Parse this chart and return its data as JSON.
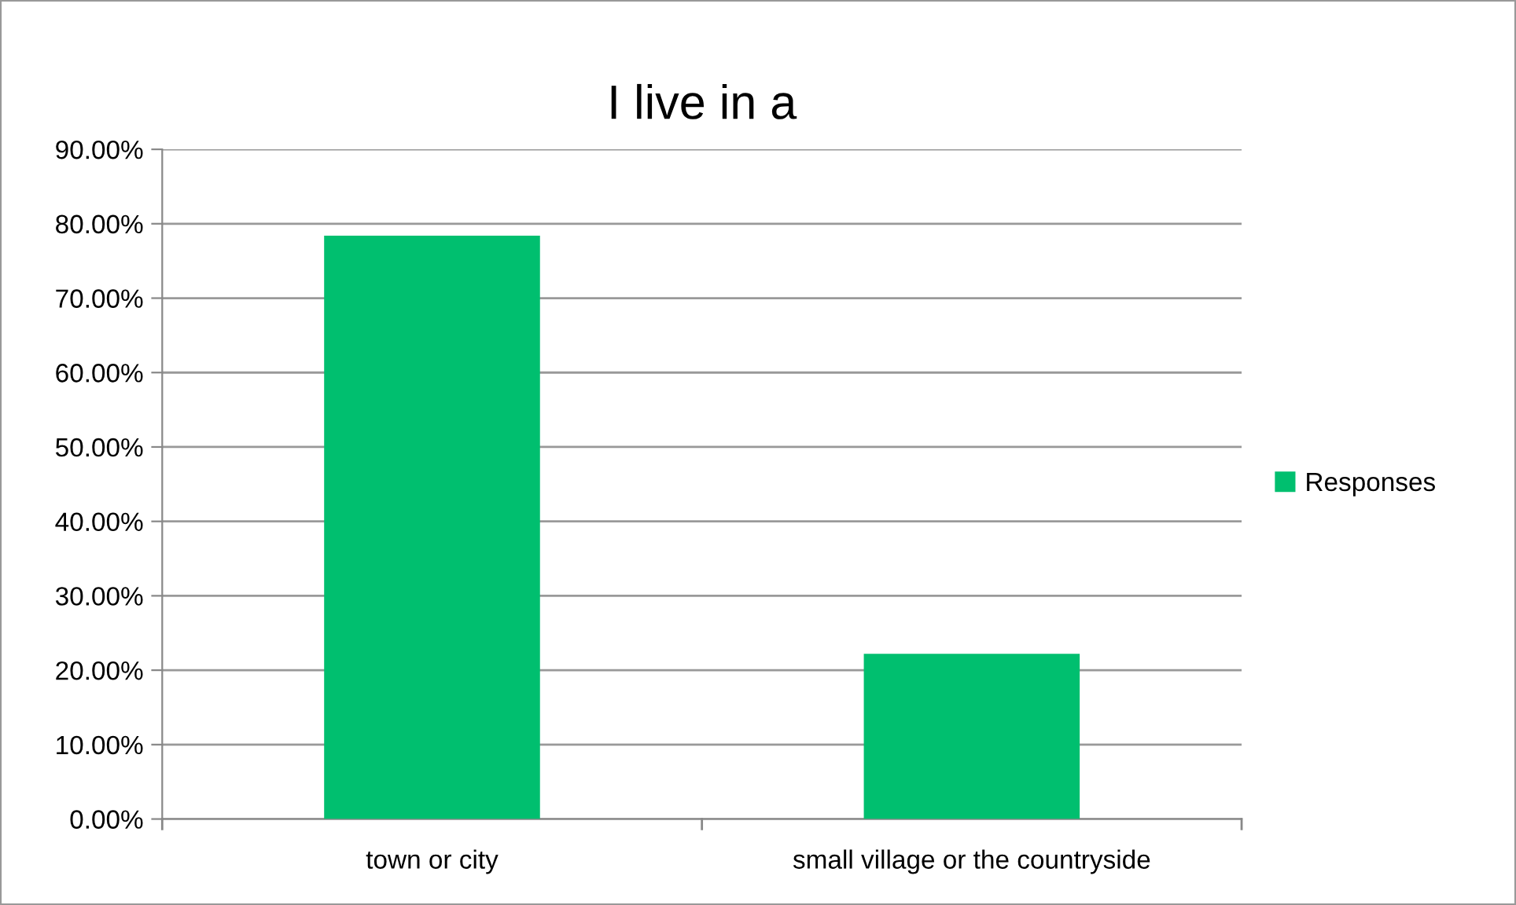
{
  "chart_data": {
    "type": "bar",
    "title": "I live in a",
    "categories": [
      "town or city",
      "small village or the countryside"
    ],
    "series": [
      {
        "name": "Responses",
        "color": "#00bf6f",
        "values": [
          78.4,
          22.2
        ]
      }
    ],
    "ylim": [
      0,
      90
    ],
    "yticks": [
      {
        "value": 0,
        "label": "0.00%"
      },
      {
        "value": 10,
        "label": "10.00%"
      },
      {
        "value": 20,
        "label": "20.00%"
      },
      {
        "value": 30,
        "label": "30.00%"
      },
      {
        "value": 40,
        "label": "40.00%"
      },
      {
        "value": 50,
        "label": "50.00%"
      },
      {
        "value": 60,
        "label": "60.00%"
      },
      {
        "value": 70,
        "label": "70.00%"
      },
      {
        "value": 80,
        "label": "80.00%"
      },
      {
        "value": 90,
        "label": "90.00%"
      }
    ],
    "grid": "y",
    "legend": "right"
  }
}
